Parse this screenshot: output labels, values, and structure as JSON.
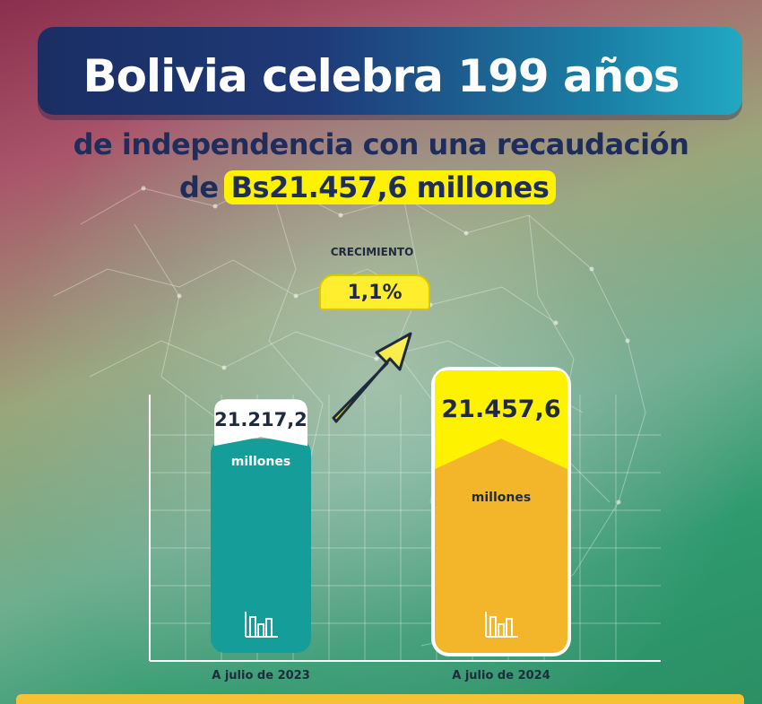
{
  "headline": {
    "title": "Bolivia celebra 199 años",
    "line2": "de independencia con una recaudación",
    "line3_prefix": "de",
    "line3_highlight": "Bs21.457,6 millones"
  },
  "colors": {
    "teal_bar": "#159e99",
    "gold_bar": "#f3b62a",
    "yellow_accent": "#fff200",
    "navy_text": "#1e2d5c"
  },
  "growth": {
    "label": "CRECIMIENTO",
    "value": "1,1%",
    "icon": "up-right-arrow-icon"
  },
  "chart_data": {
    "type": "bar",
    "categories": [
      "A julio de 2023",
      "A julio de 2024"
    ],
    "values": [
      21217.2,
      21457.6
    ],
    "value_labels": [
      "21.217,2",
      "21.457,6"
    ],
    "unit_labels": [
      "millones",
      "millones"
    ],
    "bar_icon": "bar-chart-icon",
    "grid": true,
    "title": "",
    "xlabel": "",
    "ylabel": ""
  }
}
